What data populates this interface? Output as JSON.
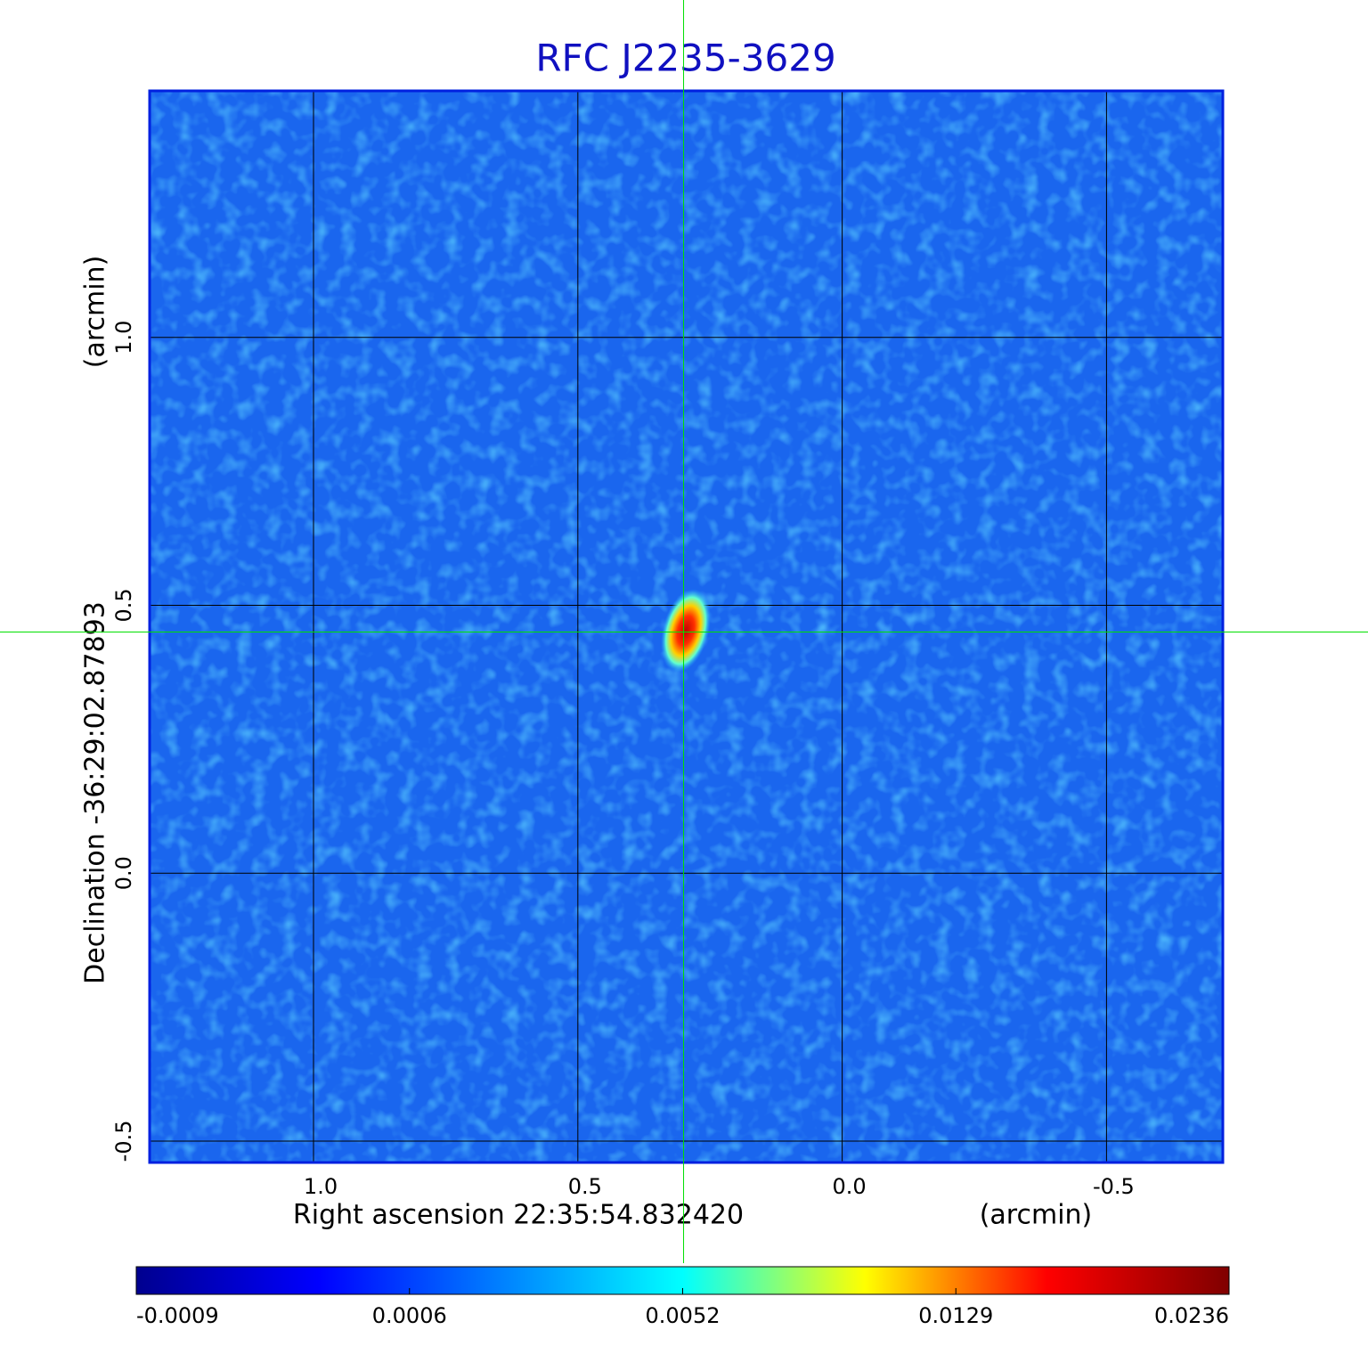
{
  "chart_data": {
    "type": "image",
    "title": "RFC J2235-3629",
    "x_label": "Right ascension  22:35:54.832420",
    "x_unit": "(arcmin)",
    "y_label": "Declination  -36:29:02.87893",
    "y_unit": "(arcmin)",
    "xlim": [
      1.31,
      -0.72
    ],
    "ylim": [
      -0.54,
      1.46
    ],
    "xticks": [
      {
        "value": 1,
        "label": "1.0"
      },
      {
        "value": 0.5,
        "label": "0.5"
      },
      {
        "value": 0,
        "label": "0.0"
      },
      {
        "value": -0.5,
        "label": "-0.5"
      }
    ],
    "yticks": [
      {
        "value": -0.5,
        "label": "-0.5"
      },
      {
        "value": 0,
        "label": "0.0"
      },
      {
        "value": 0.5,
        "label": "0.5"
      },
      {
        "value": 1,
        "label": "1.0"
      }
    ],
    "grid": true,
    "crosshair": {
      "x": 0.3,
      "y": 0.45,
      "color": "#00e000"
    },
    "colorbar": {
      "ticks": [
        -0.0009,
        0.0006,
        0.0052,
        0.0129,
        0.0236
      ],
      "colors": [
        "#00008f",
        "#0000ff",
        "#0080ff",
        "#00ffff",
        "#ffff00",
        "#ff0000",
        "#800000"
      ]
    }
  }
}
